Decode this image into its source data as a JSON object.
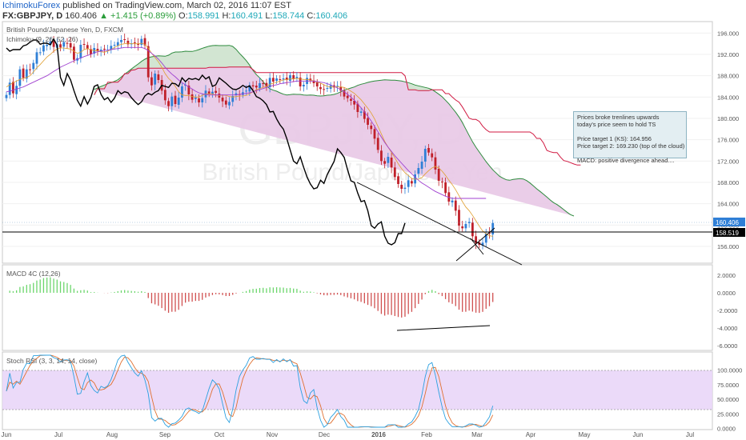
{
  "header": {
    "author": "IchimokuForex",
    "published": "published on TradingView.com, March 02, 2016 11:07 EST",
    "symbol": "FX:GBPJPY, D",
    "last": "160.406",
    "change": "▲ +1.415 (+0.89%)",
    "o_label": "O:",
    "o_val": "158.991",
    "h_label": "H:",
    "h_val": "160.491",
    "l_label": "L:",
    "l_val": "158.744",
    "c_label": "C:",
    "c_val": "160.406"
  },
  "main_pane": {
    "title": "British Pound/Japanese Yen, D, FXCM",
    "indicator_label": "Ichimoku (9, 26, 52, 26)",
    "watermark_symbol": "GBPJPY, D",
    "watermark_name": "British Pound/Japanese Yen",
    "price_ticks": [
      "196.000",
      "192.000",
      "188.000",
      "184.000",
      "180.000",
      "176.000",
      "172.000",
      "168.000",
      "164.000",
      "160.000",
      "156.000"
    ],
    "last_price_badge": "160.406",
    "hline_badge": "158.519"
  },
  "macd_pane": {
    "label": "MACD 4C (12,26)",
    "ticks": [
      "2.0000",
      "0.0000",
      "-2.0000",
      "-4.0000",
      "-6.0000"
    ]
  },
  "rsi_pane": {
    "label": "Stoch RSI (3, 3, 14, 14, close)",
    "ticks": [
      "100.0000",
      "75.0000",
      "50.0000",
      "25.0000",
      "0.0000"
    ]
  },
  "time_axis": {
    "labels": [
      "Jun",
      "Jul",
      "Aug",
      "Sep",
      "Oct",
      "Nov",
      "Dec",
      "2016",
      "Feb",
      "Mar",
      "Apr",
      "May",
      "Jun",
      "Jul"
    ]
  },
  "annotation": {
    "lines": [
      "Prices broke trenlines upwards",
      "today's price seem to hold TS",
      "",
      "Price target 1 (KS): 164.956",
      "Price target 2: 169.230 (top of the cloud)",
      "",
      "MACD: positive divergence ahead...."
    ]
  },
  "colors": {
    "bull": "#2f7fd6",
    "bear": "#c0202a",
    "tenkan": "#e0a030",
    "kijun": "#a040d0",
    "chikou": "#000000",
    "span_a": "#2e8b3e",
    "span_b": "#d01840",
    "cloud_bear": "#e8c8e6",
    "cloud_bull": "#cfe8cf",
    "macd_pos": "#6cd66c",
    "macd_neg": "#d05050",
    "rsi_k": "#2aa0e0",
    "rsi_d": "#e07030",
    "rsi_band": "#e8d4f8"
  },
  "chart_data": {
    "type": "candlestick",
    "symbol": "GBPJPY",
    "timeframe": "D",
    "y_range": [
      153,
      198
    ],
    "close": [
      184.4,
      186.7,
      184.7,
      186.1,
      189.2,
      187.6,
      189.2,
      189.1,
      190.4,
      192.4,
      192.4,
      193.7,
      193.8,
      194.4,
      193.4,
      193.9,
      193.3,
      194.3,
      194.1,
      193.3,
      191.0,
      191.3,
      193.8,
      193.9,
      193.0,
      192.0,
      193.2,
      192.6,
      192.9,
      192.9,
      192.9,
      193.6,
      193.8,
      194.3,
      194.7,
      194.7,
      193.9,
      194.1,
      194.1,
      193.8,
      194.9,
      193.7,
      187.7,
      186.2,
      188.4,
      187.2,
      185.2,
      183.4,
      182.3,
      184.1,
      182.7,
      183.9,
      186.0,
      186.3,
      184.5,
      183.5,
      183.9,
      183.0,
      183.8,
      185.2,
      184.6,
      185.0,
      184.8,
      183.9,
      183.2,
      182.6,
      183.1,
      184.2,
      184.7,
      184.4,
      184.9,
      185.2,
      186.2,
      186.0,
      185.8,
      186.6,
      186.5,
      186.0,
      187.6,
      186.9,
      187.5,
      187.3,
      187.5,
      187.2,
      188.1,
      187.4,
      187.8,
      186.0,
      186.3,
      187.6,
      187.1,
      186.6,
      186.0,
      185.5,
      185.4,
      185.7,
      186.2,
      185.8,
      186.1,
      185.2,
      184.1,
      183.8,
      183.3,
      182.6,
      181.2,
      181.3,
      179.9,
      178.8,
      178.0,
      176.2,
      174.1,
      172.0,
      171.5,
      172.8,
      170.8,
      169.0,
      167.7,
      166.8,
      167.0,
      168.4,
      167.8,
      169.5,
      170.7,
      171.9,
      174.3,
      173.6,
      172.7,
      170.4,
      168.3,
      168.0,
      166.0,
      164.4,
      164.6,
      162.7,
      159.9,
      159.4,
      160.2,
      160.6,
      157.9,
      156.6,
      156.3,
      156.7,
      158.4,
      158.4,
      160.4
    ],
    "tenkan_sen": [
      185.9,
      186.3,
      186.7,
      187.0,
      187.3,
      187.5,
      187.7,
      188.0,
      188.7,
      189.5,
      190.1,
      190.8,
      191.5,
      192.0,
      192.6,
      193.0,
      193.2,
      193.2,
      193.1,
      193.0,
      192.6,
      192.2,
      192.4,
      192.9,
      193.1,
      192.9,
      192.7,
      192.7,
      192.5,
      192.4,
      192.6,
      192.9,
      193.3,
      193.6,
      193.9,
      194.0,
      194.1,
      194.0,
      194.0,
      194.0,
      194.1,
      193.9,
      193.2,
      192.2,
      191.4,
      190.6,
      189.6,
      188.4,
      187.5,
      186.9,
      186.0,
      185.0,
      184.4,
      184.3,
      184.3,
      184.1,
      184.0,
      184.0,
      184.3,
      184.6,
      184.6,
      184.6,
      184.4,
      184.3,
      184.4,
      184.3,
      184.1,
      184.0,
      184.1,
      184.2,
      184.2,
      184.3,
      184.6,
      185.0,
      185.4,
      185.6,
      185.8,
      186.0,
      186.4,
      186.6,
      186.8,
      187.0,
      187.2,
      187.3,
      187.4,
      187.4,
      187.5,
      187.4,
      187.3,
      187.3,
      187.2,
      187.0,
      186.8,
      186.6,
      186.3,
      186.0,
      185.9,
      185.9,
      185.9,
      185.9,
      185.8,
      185.5,
      185.1,
      184.7,
      184.1,
      183.5,
      182.7,
      181.9,
      181.0,
      179.9,
      178.5,
      177.1,
      175.7,
      174.6,
      173.6,
      172.6,
      171.5,
      170.6,
      169.8,
      169.3,
      168.7,
      168.6,
      168.6,
      168.9,
      169.6,
      170.2,
      170.7,
      171.0,
      170.7,
      170.1,
      169.3,
      168.4,
      167.6,
      166.6,
      165.5,
      164.4,
      163.4,
      162.7,
      161.8,
      160.8,
      159.8,
      158.9,
      158.4,
      158.0,
      157.9
    ],
    "kijun_sen": [
      185.0,
      185.1,
      185.3,
      185.5,
      185.7,
      185.9,
      186.2,
      186.5,
      186.8,
      187.1,
      187.4,
      187.7,
      188.0,
      188.4,
      188.8,
      189.2,
      189.6,
      189.9,
      190.2,
      190.5,
      190.8,
      191.1,
      191.3,
      191.6,
      191.8,
      192.0,
      192.3,
      192.5,
      192.6,
      192.7,
      192.8,
      192.9,
      193.0,
      193.1,
      193.2,
      193.3,
      193.3,
      193.3,
      193.3,
      193.3,
      193.3,
      193.1,
      192.7,
      192.2,
      191.7,
      191.1,
      190.4,
      189.6,
      188.9,
      188.3,
      187.8,
      187.2,
      186.7,
      186.3,
      185.9,
      185.5,
      185.1,
      184.8,
      184.6,
      184.5,
      184.4,
      184.4,
      184.4,
      184.4,
      184.4,
      184.4,
      184.4,
      184.4,
      184.4,
      184.5,
      184.6,
      184.7,
      184.8,
      185.0,
      185.2,
      185.4,
      185.6,
      185.8,
      186.0,
      186.2,
      186.3,
      186.5,
      186.6,
      186.7,
      186.8,
      186.9,
      187.0,
      187.0,
      187.0,
      187.0,
      187.0,
      187.0,
      186.9,
      186.8,
      186.7,
      186.5,
      186.3,
      186.0,
      185.7,
      185.4,
      185.0,
      184.5,
      184.0,
      183.4,
      182.7,
      182.0,
      181.2,
      180.4,
      179.5,
      178.5,
      177.5,
      176.5,
      175.5,
      174.6,
      173.8,
      173.0,
      172.3,
      171.6,
      170.9,
      170.2,
      169.6,
      169.0,
      168.4,
      167.9,
      167.5,
      167.1,
      166.7,
      166.3,
      166.0,
      165.7,
      165.4,
      165.2,
      165.0,
      165.0,
      165.0,
      165.0,
      165.0,
      165.0,
      165.0,
      165.0,
      165.0,
      165.0,
      165.0
    ]
  }
}
